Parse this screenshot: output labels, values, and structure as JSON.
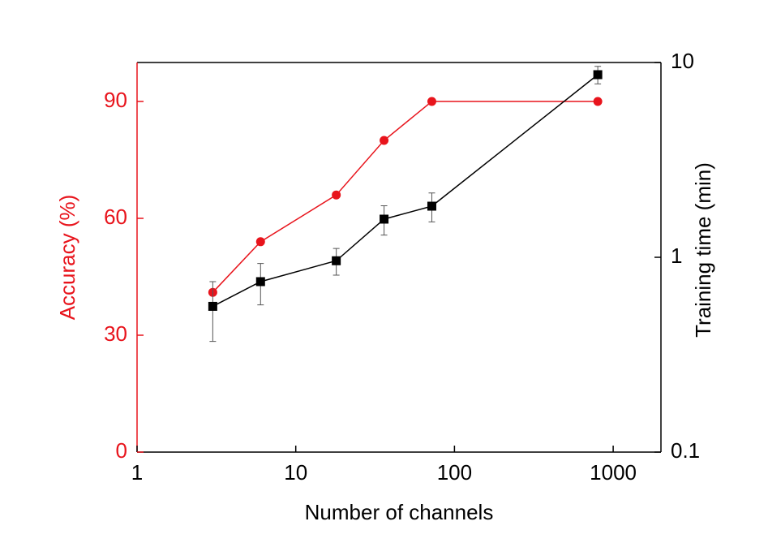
{
  "chart_data": {
    "type": "line",
    "x_label": "Number of channels",
    "y_label": "Accuracy (%)",
    "y2_label": "Training time (min)",
    "x_log": true,
    "y2_log": true,
    "x": [
      3,
      6,
      18,
      36,
      72,
      800
    ],
    "xlim": [
      1,
      2000
    ],
    "xticks": [
      1,
      10,
      100,
      1000
    ],
    "ylim": [
      0,
      100
    ],
    "yticks": [
      0,
      30,
      60,
      90
    ],
    "y2lim": [
      0.1,
      10
    ],
    "y2ticks": [
      0.1,
      1,
      10
    ],
    "y_axis_color": "#e8141c",
    "y2_axis_color": "#000000",
    "series": [
      {
        "name": "Accuracy",
        "color": "#e8141c",
        "marker": "circle",
        "values": [
          41,
          54,
          66,
          80,
          90,
          90
        ]
      },
      {
        "name": "Training time",
        "color": "#000000",
        "marker": "square",
        "axis": "y2",
        "values": [
          0.56,
          0.75,
          0.96,
          1.57,
          1.83,
          8.66
        ],
        "errors": [
          0.19,
          0.18,
          0.15,
          0.27,
          0.31,
          0.9
        ]
      }
    ]
  }
}
